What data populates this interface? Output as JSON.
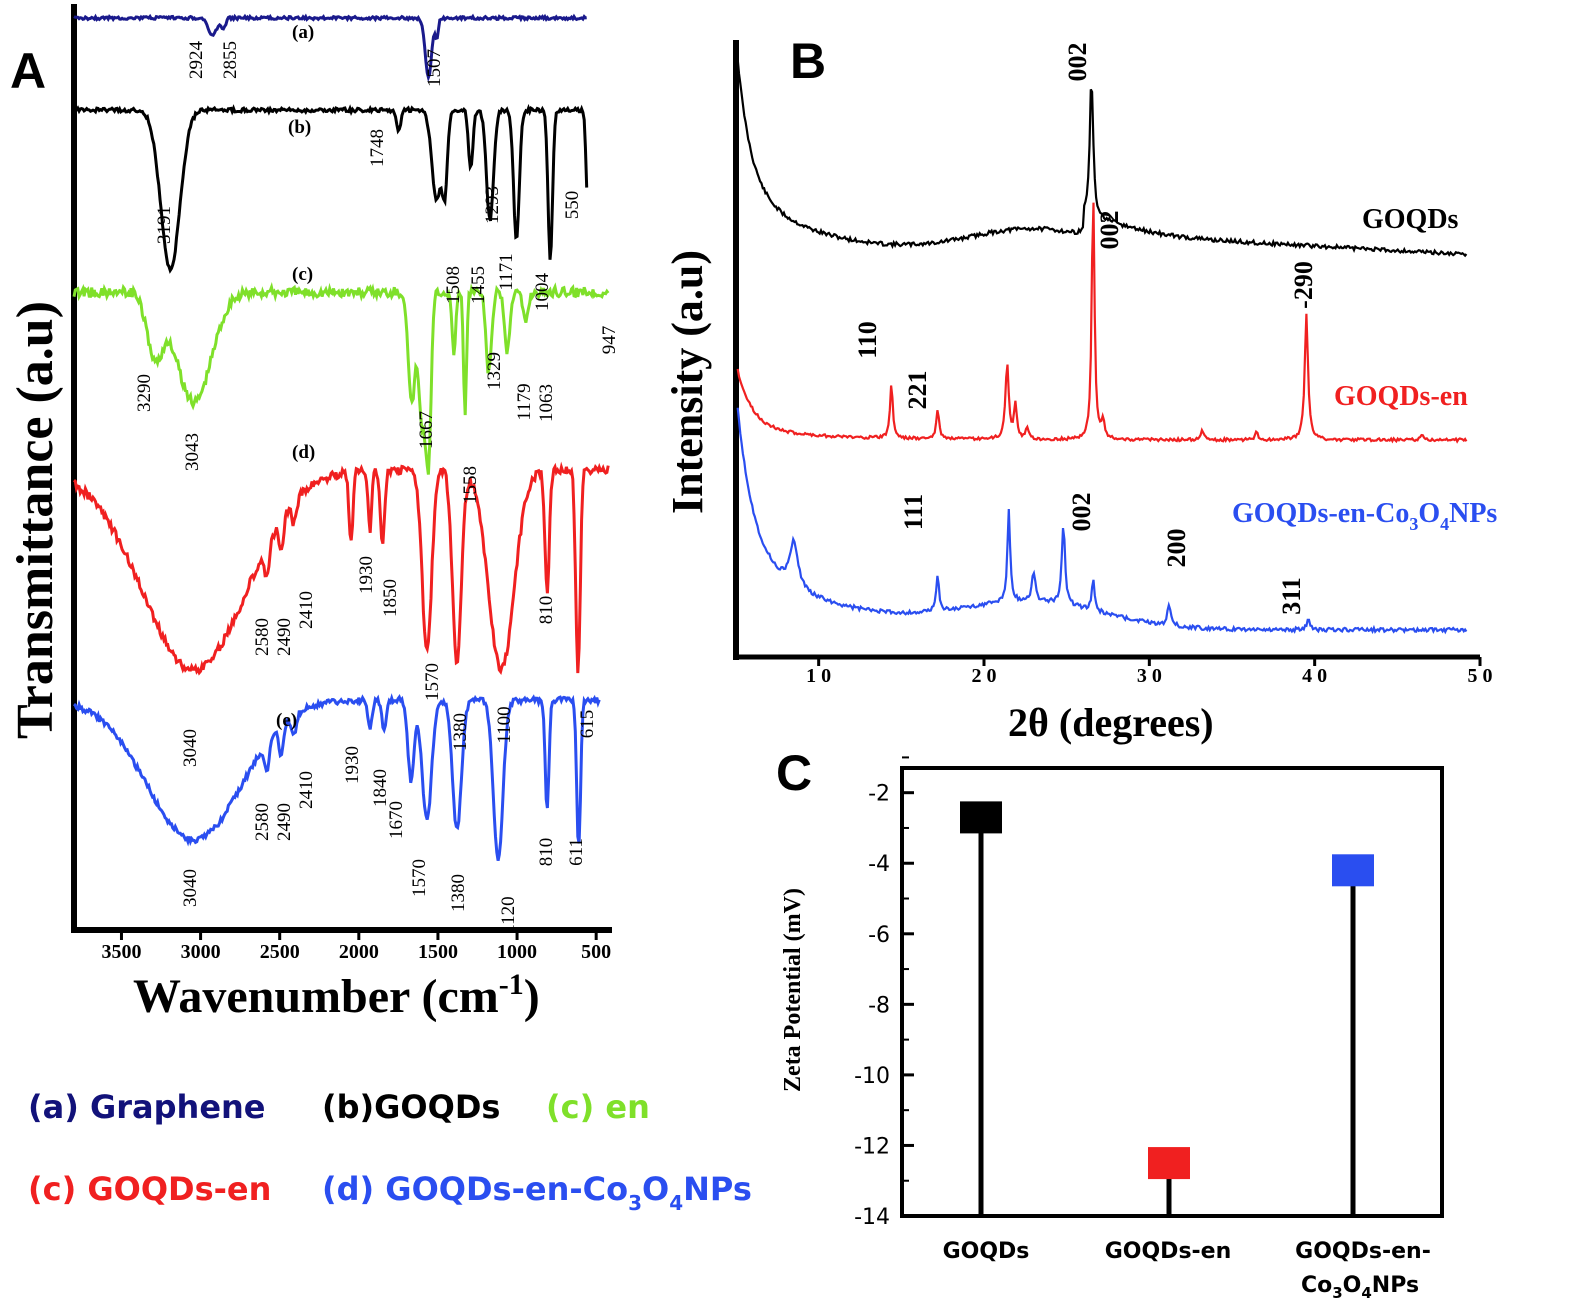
{
  "panels": {
    "A": {
      "letter": "A",
      "ylabel": "Transmittance (a.u)",
      "xlabel": "Wavenumber (cm",
      "xlabel_sup": "-1",
      "xlabel_end": ")",
      "xticks": [
        "3500",
        "3000",
        "2500",
        "2000",
        "1500",
        "1000",
        "500"
      ]
    },
    "B": {
      "letter": "B",
      "ylabel": "Intensity (a.u)",
      "xlabel": "2θ (degrees)",
      "xticks": [
        "1 0",
        "2 0",
        "3 0",
        "4 0",
        "5 0"
      ]
    },
    "C": {
      "letter": "C",
      "ylabel": "Zeta Potential (mV)"
    }
  },
  "legend": {
    "a": "(a) Graphene",
    "b": "(b)GOQDs",
    "c_en": "(c) en",
    "c_goqds_en": "(c) GOQDs-en",
    "d_prefix": "(d) GOQDs-en-Co",
    "d_sub1": "3",
    "d_mid": "O",
    "d_sub2": "4",
    "d_suffix": "NPs"
  },
  "colors": {
    "graphene": "#1a1a8c",
    "goqds": "#000000",
    "en": "#7fe02a",
    "goqds_en": "#f02020",
    "co3o4": "#2a4ef0",
    "legend_graphene": "#12127a",
    "legend_en": "#7fe02a",
    "legend_red": "#f02020",
    "legend_blue": "#2a4ef0"
  },
  "chart_data": [
    {
      "panel": "A",
      "type": "line",
      "xlabel": "Wavenumber (cm-1)",
      "ylabel": "Transmittance (a.u)",
      "xlim": [
        3800,
        400
      ],
      "series": [
        {
          "name": "(a)",
          "annotations": [
            {
              "x": 2924,
              "label": "2924"
            },
            {
              "x": 2855,
              "label": "2855"
            },
            {
              "x": 1507,
              "label": "1507"
            }
          ]
        },
        {
          "name": "(b)",
          "annotations": [
            {
              "x": 3191,
              "label": "3191"
            },
            {
              "x": 1748,
              "label": "1748"
            },
            {
              "x": 1508,
              "label": "1508"
            },
            {
              "x": 1455,
              "label": "1455"
            },
            {
              "x": 1293,
              "label": "1293"
            },
            {
              "x": 1171,
              "label": "1171"
            },
            {
              "x": 1004,
              "label": "1004"
            },
            {
              "x": 550,
              "label": "550"
            }
          ]
        },
        {
          "name": "(c)",
          "annotations": [
            {
              "x": 3290,
              "label": "3290"
            },
            {
              "x": 3043,
              "label": "3043"
            },
            {
              "x": 1667,
              "label": "1667"
            },
            {
              "x": 1558,
              "label": "1558"
            },
            {
              "x": 1329,
              "label": "1329"
            },
            {
              "x": 1179,
              "label": "1179"
            },
            {
              "x": 1063,
              "label": "1063"
            },
            {
              "x": 947,
              "label": "947"
            }
          ]
        },
        {
          "name": "(d)",
          "annotations": [
            {
              "x": 3040,
              "label": "3040"
            },
            {
              "x": 2580,
              "label": "2580"
            },
            {
              "x": 2490,
              "label": "2490"
            },
            {
              "x": 2410,
              "label": "2410"
            },
            {
              "x": 1930,
              "label": "1930"
            },
            {
              "x": 1850,
              "label": "1850"
            },
            {
              "x": 1570,
              "label": "1570"
            },
            {
              "x": 1380,
              "label": "1380"
            },
            {
              "x": 1100,
              "label": "1100"
            },
            {
              "x": 810,
              "label": "810"
            },
            {
              "x": 615,
              "label": "615"
            }
          ]
        },
        {
          "name": "(e)",
          "annotations": [
            {
              "x": 3040,
              "label": "3040"
            },
            {
              "x": 2580,
              "label": "2580"
            },
            {
              "x": 2490,
              "label": "2490"
            },
            {
              "x": 2410,
              "label": "2410"
            },
            {
              "x": 1930,
              "label": "1930"
            },
            {
              "x": 1840,
              "label": "1840"
            },
            {
              "x": 1670,
              "label": "1670"
            },
            {
              "x": 1570,
              "label": "1570"
            },
            {
              "x": 1380,
              "label": "1380"
            },
            {
              "x": 1120,
              "label": "1120"
            },
            {
              "x": 810,
              "label": "810"
            },
            {
              "x": 611,
              "label": "611"
            }
          ]
        }
      ]
    },
    {
      "panel": "B",
      "type": "line",
      "xlabel": "2θ (degrees)",
      "ylabel": "Intensity (a.u)",
      "xlim": [
        5,
        50
      ],
      "series": [
        {
          "name": "GOQDs",
          "peaks": [
            {
              "x": 26.5,
              "label": "002"
            }
          ]
        },
        {
          "name": "GOQDs-en",
          "peaks": [
            {
              "x": 14.4,
              "label": "110"
            },
            {
              "x": 17.2,
              "label": "221"
            },
            {
              "x": 26.6,
              "label": "002"
            },
            {
              "x": 39.5,
              "label": "-290"
            }
          ]
        },
        {
          "name_prefix": "GOQDs-en-Co",
          "name_sub1": "3",
          "name_mid": "O",
          "name_sub2": "4",
          "name_suffix": "NPs",
          "peaks": [
            {
              "x": 17.2,
              "label": "111"
            },
            {
              "x": 26.6,
              "label": "002"
            },
            {
              "x": 31.2,
              "label": "200"
            },
            {
              "x": 39.6,
              "label": "311"
            }
          ]
        }
      ]
    },
    {
      "panel": "C",
      "type": "scatter",
      "ylabel": "Zeta Potential (mV)",
      "ylim": [
        -14,
        -1.3
      ],
      "yticks": [
        "-2",
        "-4",
        "-6",
        "-8",
        "-10",
        "-12",
        "-14"
      ],
      "categories": [
        "GOQDs",
        "GOQDs-en",
        "GOQDs-en-Co3O4NPs"
      ],
      "category_labels": [
        {
          "line1": "GOQDs"
        },
        {
          "line1": "GOQDs-en"
        },
        {
          "line1": "GOQDs-en-",
          "line2_prefix": "Co",
          "line2_sub1": "3",
          "line2_mid": "O",
          "line2_sub2": "4",
          "line2_suffix": "NPs"
        }
      ],
      "values": [
        -2.7,
        -12.5,
        -4.2
      ]
    }
  ]
}
